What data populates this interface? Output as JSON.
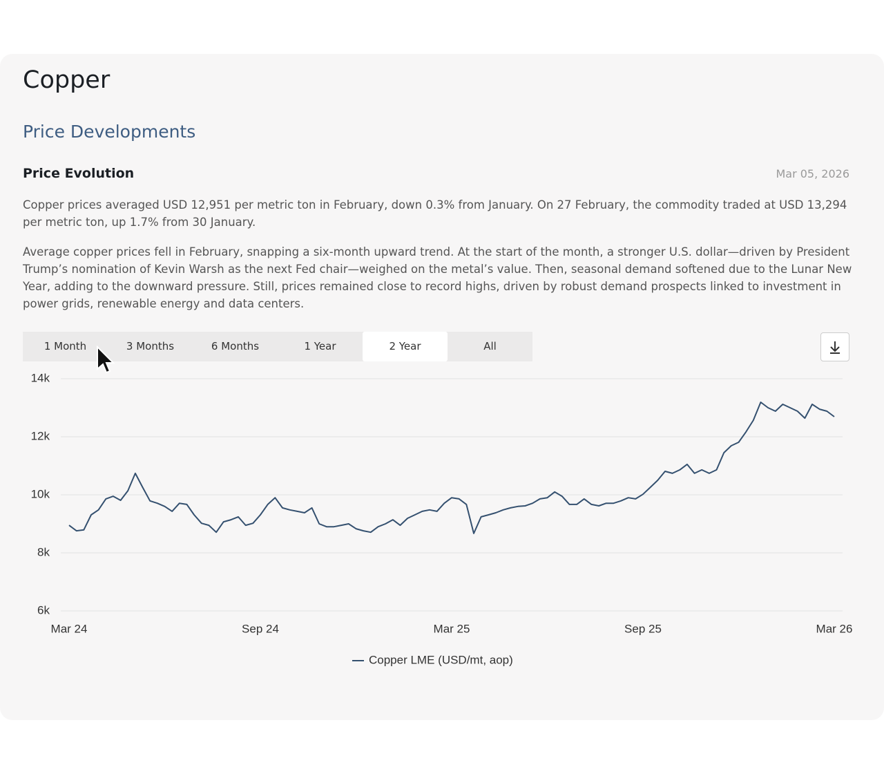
{
  "header": {
    "title": "Copper",
    "subtitle": "Price Developments",
    "section": "Price Evolution",
    "date": "Mar 05, 2026"
  },
  "paragraphs": [
    "Copper prices averaged USD 12,951 per metric ton in February, down 0.3% from January. On 27 February, the commodity traded at USD 13,294 per metric ton, up 1.7% from 30 January.",
    "Average copper prices fell in February, snapping a six-month upward trend. At the start of the month, a stronger U.S. dollar—driven by President Trump’s nomination of Kevin Warsh as the next Fed chair—weighed on the metal’s value. Then, seasonal demand softened due to the Lunar New Year, adding to the downward pressure. Still, prices remained close to record highs, driven by robust demand prospects linked to investment in power grids, renewable energy and data centers."
  ],
  "tabs": {
    "items": [
      "1 Month",
      "3 Months",
      "6 Months",
      "1 Year",
      "2 Year",
      "All"
    ],
    "active": 4
  },
  "chart_data": {
    "type": "line",
    "categories": [
      "Mar 24",
      null,
      null,
      null,
      null,
      null,
      null,
      null,
      null,
      null,
      null,
      null,
      null,
      null,
      null,
      null,
      null,
      null,
      null,
      null,
      null,
      null,
      null,
      null,
      null,
      null,
      "Sep 24",
      null,
      null,
      null,
      null,
      null,
      null,
      null,
      null,
      null,
      null,
      null,
      null,
      null,
      null,
      null,
      null,
      null,
      null,
      null,
      null,
      null,
      null,
      null,
      null,
      null,
      "Mar 25",
      null,
      null,
      null,
      null,
      null,
      null,
      null,
      null,
      null,
      null,
      null,
      null,
      null,
      null,
      null,
      null,
      null,
      null,
      null,
      null,
      null,
      null,
      null,
      null,
      null,
      "Sep 25",
      null,
      null,
      null,
      null,
      null,
      null,
      null,
      null,
      null,
      null,
      null,
      null,
      null,
      null,
      null,
      null,
      null,
      null,
      null,
      null,
      null,
      null,
      null,
      null,
      null,
      "Mar 26"
    ],
    "series": [
      {
        "name": "Copper LME (USD/mt, aop)",
        "color": "#34506f",
        "values": [
          8950,
          8760,
          8790,
          9310,
          9480,
          9860,
          9950,
          9810,
          10140,
          10740,
          10260,
          9790,
          9710,
          9600,
          9430,
          9710,
          9670,
          9310,
          9020,
          8950,
          8710,
          9070,
          9140,
          9240,
          8950,
          9020,
          9310,
          9670,
          9900,
          9550,
          9480,
          9430,
          9380,
          9550,
          9000,
          8900,
          8900,
          8950,
          9000,
          8830,
          8760,
          8710,
          8900,
          9000,
          9140,
          8950,
          9190,
          9310,
          9430,
          9480,
          9430,
          9710,
          9900,
          9860,
          9670,
          8670,
          9240,
          9310,
          9380,
          9480,
          9550,
          9600,
          9620,
          9710,
          9860,
          9900,
          10100,
          9950,
          9670,
          9670,
          9860,
          9670,
          9620,
          9710,
          9710,
          9790,
          9900,
          9860,
          10020,
          10260,
          10500,
          10810,
          10740,
          10860,
          11050,
          10740,
          10860,
          10740,
          10860,
          11450,
          11690,
          11810,
          12170,
          12570,
          13190,
          13000,
          12880,
          13120,
          13000,
          12880,
          12640,
          13120,
          12950,
          12880,
          12690
        ]
      }
    ],
    "ylim": [
      6000,
      14000
    ],
    "yticks": [
      {
        "value": 6000,
        "label": "6k"
      },
      {
        "value": 8000,
        "label": "8k"
      },
      {
        "value": 10000,
        "label": "10k"
      },
      {
        "value": 12000,
        "label": "12k"
      },
      {
        "value": 14000,
        "label": "14k"
      }
    ],
    "grid": true,
    "legend": "bottom"
  }
}
